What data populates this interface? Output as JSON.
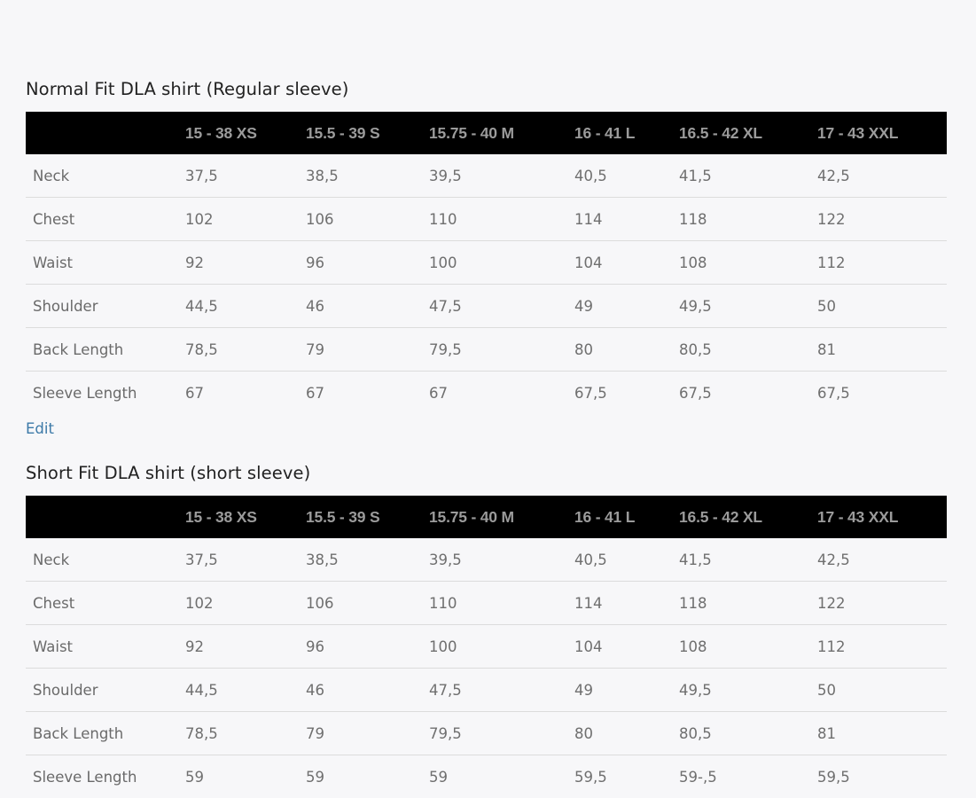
{
  "sections": [
    {
      "title": "Normal Fit DLA shirt (Regular sleeve)",
      "headers": [
        "",
        "15 - 38 XS",
        "15.5 - 39 S",
        "15.75 - 40 M",
        "16 - 41 L",
        "16.5 - 42 XL",
        "17 - 43 XXL"
      ],
      "rows": [
        [
          "Neck",
          "37,5",
          "38,5",
          "39,5",
          "40,5",
          "41,5",
          "42,5"
        ],
        [
          "Chest",
          "102",
          "106",
          "110",
          "114",
          "118",
          "122"
        ],
        [
          "Waist",
          "92",
          "96",
          "100",
          "104",
          "108",
          "112"
        ],
        [
          "Shoulder",
          "44,5",
          "46",
          "47,5",
          "49",
          "49,5",
          "50"
        ],
        [
          "Back Length",
          "78,5",
          "79",
          "79,5",
          "80",
          "80,5",
          "81"
        ],
        [
          "Sleeve Length",
          "67",
          "67",
          "67",
          "67,5",
          "67,5",
          "67,5"
        ]
      ],
      "edit_label": "Edit"
    },
    {
      "title": "Short Fit DLA shirt (short sleeve)",
      "headers": [
        "",
        "15 - 38 XS",
        "15.5 - 39 S",
        "15.75 - 40 M",
        "16 - 41 L",
        "16.5 - 42 XL",
        "17 - 43 XXL"
      ],
      "rows": [
        [
          "Neck",
          "37,5",
          "38,5",
          "39,5",
          "40,5",
          "41,5",
          "42,5"
        ],
        [
          "Chest",
          "102",
          "106",
          "110",
          "114",
          "118",
          "122"
        ],
        [
          "Waist",
          "92",
          "96",
          "100",
          "104",
          "108",
          "112"
        ],
        [
          "Shoulder",
          "44,5",
          "46",
          "47,5",
          "49",
          "49,5",
          "50"
        ],
        [
          "Back Length",
          "78,5",
          "79",
          "79,5",
          "80",
          "80,5",
          "81"
        ],
        [
          "Sleeve Length",
          "59",
          "59",
          "59",
          "59,5",
          "59-,5",
          "59,5"
        ]
      ]
    }
  ],
  "colors": {
    "page_background": "#f7f7f9",
    "header_background": "#000000",
    "header_text": "#9b9b9b",
    "body_text": "#6f6f6f",
    "title_text": "#222222",
    "link": "#3d7aa8",
    "row_divider": "#dcdcdc"
  }
}
